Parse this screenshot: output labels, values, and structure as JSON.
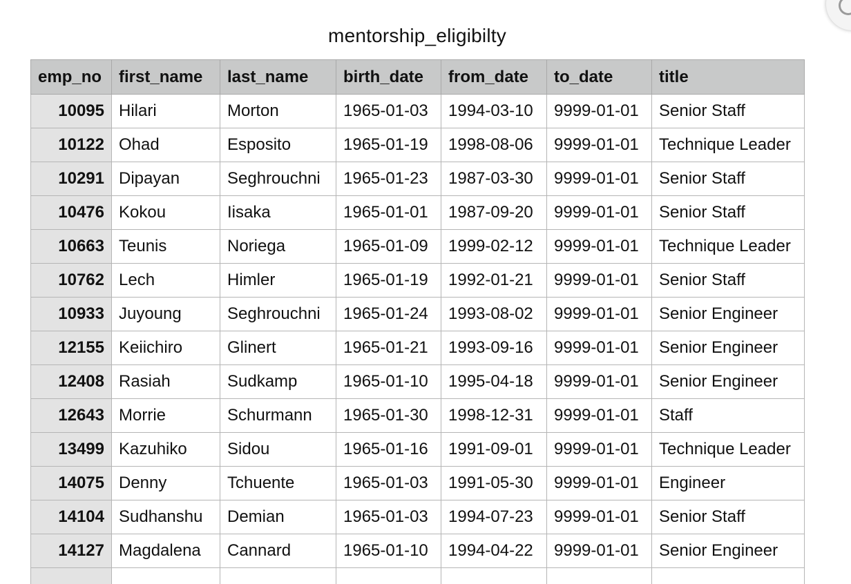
{
  "document": {
    "title": "mentorship_eligibilty"
  },
  "table": {
    "columns": [
      "emp_no",
      "first_name",
      "last_name",
      "birth_date",
      "from_date",
      "to_date",
      "title"
    ],
    "rows": [
      [
        "10095",
        "Hilari",
        "Morton",
        "1965-01-03",
        "1994-03-10",
        "9999-01-01",
        "Senior Staff"
      ],
      [
        "10122",
        "Ohad",
        "Esposito",
        "1965-01-19",
        "1998-08-06",
        "9999-01-01",
        "Technique Leader"
      ],
      [
        "10291",
        "Dipayan",
        "Seghrouchni",
        "1965-01-23",
        "1987-03-30",
        "9999-01-01",
        "Senior Staff"
      ],
      [
        "10476",
        "Kokou",
        "Iisaka",
        "1965-01-01",
        "1987-09-20",
        "9999-01-01",
        "Senior Staff"
      ],
      [
        "10663",
        "Teunis",
        "Noriega",
        "1965-01-09",
        "1999-02-12",
        "9999-01-01",
        "Technique Leader"
      ],
      [
        "10762",
        "Lech",
        "Himler",
        "1965-01-19",
        "1992-01-21",
        "9999-01-01",
        "Senior Staff"
      ],
      [
        "10933",
        "Juyoung",
        "Seghrouchni",
        "1965-01-24",
        "1993-08-02",
        "9999-01-01",
        "Senior Engineer"
      ],
      [
        "12155",
        "Keiichiro",
        "Glinert",
        "1965-01-21",
        "1993-09-16",
        "9999-01-01",
        "Senior Engineer"
      ],
      [
        "12408",
        "Rasiah",
        "Sudkamp",
        "1965-01-10",
        "1995-04-18",
        "9999-01-01",
        "Senior Engineer"
      ],
      [
        "12643",
        "Morrie",
        "Schurmann",
        "1965-01-30",
        "1998-12-31",
        "9999-01-01",
        "Staff"
      ],
      [
        "13499",
        "Kazuhiko",
        "Sidou",
        "1965-01-16",
        "1991-09-01",
        "9999-01-01",
        "Technique Leader"
      ],
      [
        "14075",
        "Denny",
        "Tchuente",
        "1965-01-03",
        "1991-05-30",
        "9999-01-01",
        "Engineer"
      ],
      [
        "14104",
        "Sudhanshu",
        "Demian",
        "1965-01-03",
        "1994-07-23",
        "9999-01-01",
        "Senior Staff"
      ],
      [
        "14127",
        "Magdalena",
        "Cannard",
        "1965-01-10",
        "1994-04-22",
        "9999-01-01",
        "Senior Engineer"
      ],
      [
        "",
        "",
        "",
        "",
        "",
        "",
        ""
      ]
    ]
  },
  "icons": {
    "corner_button": "refresh-icon"
  }
}
